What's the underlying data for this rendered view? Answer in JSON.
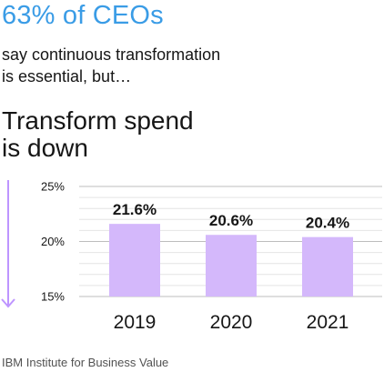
{
  "header": {
    "headline": "63% of CEOs",
    "subhead_line1": "say continuous transformation",
    "subhead_line2": "is essential, but…"
  },
  "chart_heading": {
    "line1": "Transform spend",
    "line2": "is down"
  },
  "colors": {
    "accent_blue": "#3a9ce6",
    "bar_fill": "#d4b8fb",
    "arrow": "#be95ff",
    "grid": "#e4e4e4"
  },
  "chart_data": {
    "type": "bar",
    "categories": [
      "2019",
      "2020",
      "2021"
    ],
    "values": [
      21.6,
      20.6,
      20.4
    ],
    "data_labels": [
      "21.6%",
      "20.6%",
      "20.4%"
    ],
    "ylim": [
      15,
      25
    ],
    "yticks": [
      15,
      20,
      25
    ],
    "ytick_labels": [
      "15%",
      "20%",
      "25%"
    ],
    "grid": true,
    "minor_grid_step": 1,
    "trend_arrow": "down"
  },
  "footer": {
    "source": "IBM Institute for Business Value"
  }
}
